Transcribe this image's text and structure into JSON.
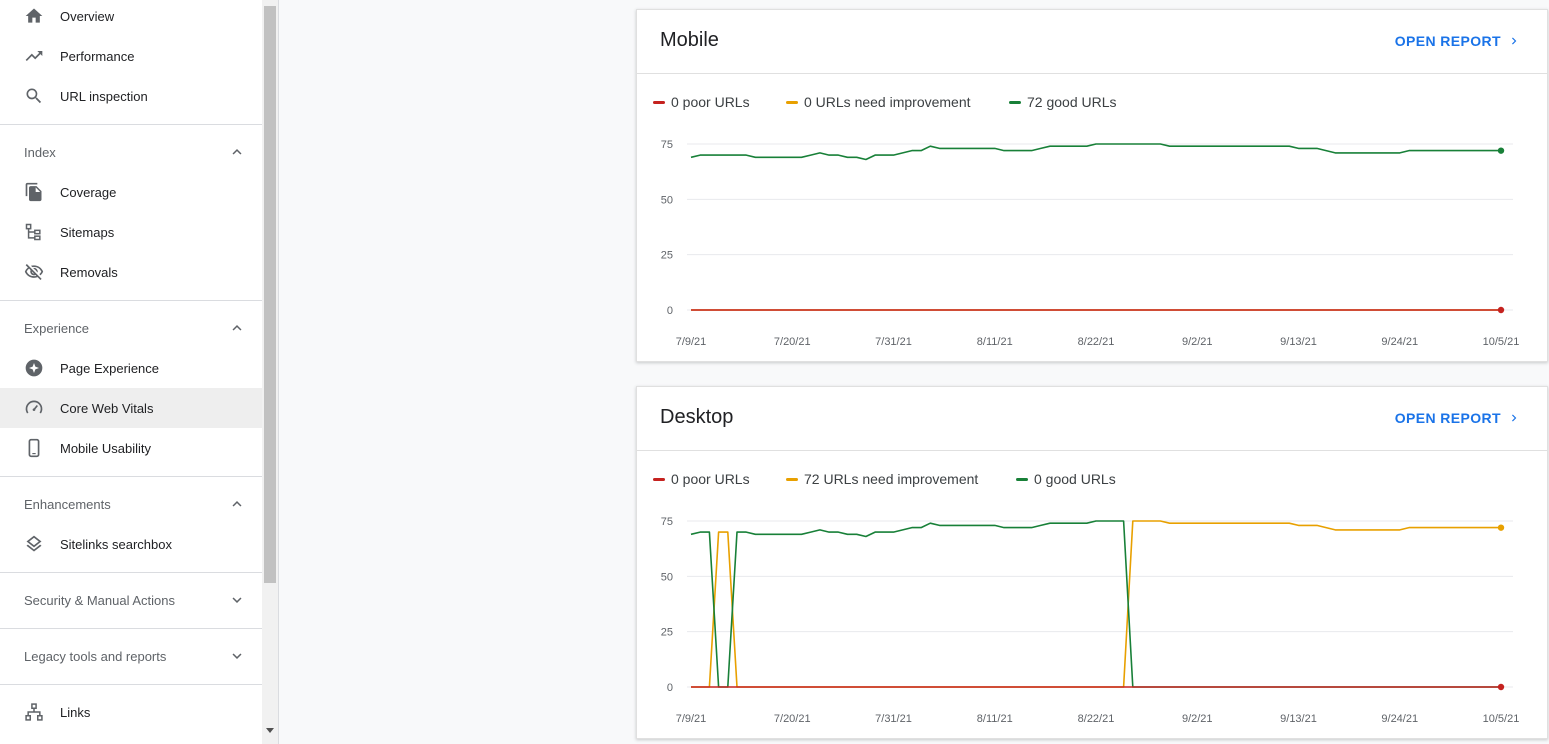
{
  "sidebar": {
    "top_items": [
      {
        "label": "Overview",
        "icon": "home-icon"
      },
      {
        "label": "Performance",
        "icon": "trending-up-icon"
      },
      {
        "label": "URL inspection",
        "icon": "search-icon"
      }
    ],
    "sections": [
      {
        "label": "Index",
        "expanded": true,
        "items": [
          {
            "label": "Coverage",
            "icon": "coverage-icon"
          },
          {
            "label": "Sitemaps",
            "icon": "sitemap-icon"
          },
          {
            "label": "Removals",
            "icon": "eye-off-icon"
          }
        ]
      },
      {
        "label": "Experience",
        "expanded": true,
        "items": [
          {
            "label": "Page Experience",
            "icon": "star-badge-icon"
          },
          {
            "label": "Core Web Vitals",
            "icon": "gauge-icon",
            "active": true
          },
          {
            "label": "Mobile Usability",
            "icon": "phone-icon"
          }
        ]
      },
      {
        "label": "Enhancements",
        "expanded": true,
        "items": [
          {
            "label": "Sitelinks searchbox",
            "icon": "layers-icon"
          }
        ]
      },
      {
        "label": "Security & Manual Actions",
        "expanded": false,
        "items": []
      },
      {
        "label": "Legacy tools and reports",
        "expanded": false,
        "items": []
      }
    ],
    "bottom_items": [
      {
        "label": "Links",
        "icon": "links-icon"
      }
    ]
  },
  "colors": {
    "poor": "#c5221f",
    "improvement": "#e8a000",
    "good": "#188038",
    "link": "#1a73e8"
  },
  "cards": [
    {
      "title": "Mobile",
      "open_report_label": "OPEN REPORT",
      "legend": [
        {
          "label": "0 poor URLs",
          "color": "#c5221f"
        },
        {
          "label": "0 URLs need improvement",
          "color": "#e8a000"
        },
        {
          "label": "72 good URLs",
          "color": "#188038"
        }
      ]
    },
    {
      "title": "Desktop",
      "open_report_label": "OPEN REPORT",
      "legend": [
        {
          "label": "0 poor URLs",
          "color": "#c5221f"
        },
        {
          "label": "72 URLs need improvement",
          "color": "#e8a000"
        },
        {
          "label": "0 good URLs",
          "color": "#188038"
        }
      ]
    }
  ],
  "chart_data": [
    {
      "type": "line",
      "title": "Mobile",
      "x_ticks": [
        "7/9/21",
        "7/20/21",
        "7/31/21",
        "8/11/21",
        "8/22/21",
        "9/2/21",
        "9/13/21",
        "9/24/21",
        "10/5/21"
      ],
      "y_ticks": [
        0,
        25,
        50,
        75
      ],
      "ylim": [
        0,
        80
      ],
      "x_start": "7/9/21",
      "x_end": "10/5/21",
      "days": 89,
      "grid": true,
      "legend_position": "top-left",
      "series": [
        {
          "name": "0 poor URLs",
          "color": "#c5221f",
          "values": [
            0,
            0,
            0,
            0,
            0,
            0,
            0,
            0,
            0,
            0,
            0,
            0,
            0,
            0,
            0,
            0,
            0,
            0,
            0,
            0,
            0,
            0,
            0,
            0,
            0,
            0,
            0,
            0,
            0,
            0,
            0,
            0,
            0,
            0,
            0,
            0,
            0,
            0,
            0,
            0,
            0,
            0,
            0,
            0,
            0,
            0,
            0,
            0,
            0,
            0,
            0,
            0,
            0,
            0,
            0,
            0,
            0,
            0,
            0,
            0,
            0,
            0,
            0,
            0,
            0,
            0,
            0,
            0,
            0,
            0,
            0,
            0,
            0,
            0,
            0,
            0,
            0,
            0,
            0,
            0,
            0,
            0,
            0,
            0,
            0,
            0,
            0,
            0,
            0
          ]
        },
        {
          "name": "0 URLs need improvement",
          "color": "#e8a000",
          "values": [
            0,
            0,
            0,
            0,
            0,
            0,
            0,
            0,
            0,
            0,
            0,
            0,
            0,
            0,
            0,
            0,
            0,
            0,
            0,
            0,
            0,
            0,
            0,
            0,
            0,
            0,
            0,
            0,
            0,
            0,
            0,
            0,
            0,
            0,
            0,
            0,
            0,
            0,
            0,
            0,
            0,
            0,
            0,
            0,
            0,
            0,
            0,
            0,
            0,
            0,
            0,
            0,
            0,
            0,
            0,
            0,
            0,
            0,
            0,
            0,
            0,
            0,
            0,
            0,
            0,
            0,
            0,
            0,
            0,
            0,
            0,
            0,
            0,
            0,
            0,
            0,
            0,
            0,
            0,
            0,
            0,
            0,
            0,
            0,
            0,
            0,
            0,
            0,
            0
          ]
        },
        {
          "name": "72 good URLs",
          "color": "#188038",
          "values": [
            69,
            70,
            70,
            70,
            70,
            70,
            70,
            69,
            69,
            69,
            69,
            69,
            69,
            70,
            71,
            70,
            70,
            69,
            69,
            68,
            70,
            70,
            70,
            71,
            72,
            72,
            74,
            73,
            73,
            73,
            73,
            73,
            73,
            73,
            72,
            72,
            72,
            72,
            73,
            74,
            74,
            74,
            74,
            74,
            75,
            75,
            75,
            75,
            75,
            75,
            75,
            75,
            74,
            74,
            74,
            74,
            74,
            74,
            74,
            74,
            74,
            74,
            74,
            74,
            74,
            74,
            73,
            73,
            73,
            72,
            71,
            71,
            71,
            71,
            71,
            71,
            71,
            71,
            72,
            72,
            72,
            72,
            72,
            72,
            72,
            72,
            72,
            72,
            72
          ]
        }
      ]
    },
    {
      "type": "line",
      "title": "Desktop",
      "x_ticks": [
        "7/9/21",
        "7/20/21",
        "7/31/21",
        "8/11/21",
        "8/22/21",
        "9/2/21",
        "9/13/21",
        "9/24/21",
        "10/5/21"
      ],
      "y_ticks": [
        0,
        25,
        50,
        75
      ],
      "ylim": [
        0,
        80
      ],
      "x_start": "7/9/21",
      "x_end": "10/5/21",
      "days": 89,
      "grid": true,
      "legend_position": "top-left",
      "series": [
        {
          "name": "0 poor URLs",
          "color": "#c5221f",
          "values": [
            0,
            0,
            0,
            0,
            0,
            0,
            0,
            0,
            0,
            0,
            0,
            0,
            0,
            0,
            0,
            0,
            0,
            0,
            0,
            0,
            0,
            0,
            0,
            0,
            0,
            0,
            0,
            0,
            0,
            0,
            0,
            0,
            0,
            0,
            0,
            0,
            0,
            0,
            0,
            0,
            0,
            0,
            0,
            0,
            0,
            0,
            0,
            0,
            0,
            0,
            0,
            0,
            0,
            0,
            0,
            0,
            0,
            0,
            0,
            0,
            0,
            0,
            0,
            0,
            0,
            0,
            0,
            0,
            0,
            0,
            0,
            0,
            0,
            0,
            0,
            0,
            0,
            0,
            0,
            0,
            0,
            0,
            0,
            0,
            0,
            0,
            0,
            0,
            0
          ]
        },
        {
          "name": "72 URLs need improvement",
          "color": "#e8a000",
          "values": [
            0,
            0,
            0,
            70,
            70,
            0,
            0,
            0,
            0,
            0,
            0,
            0,
            0,
            0,
            0,
            0,
            0,
            0,
            0,
            0,
            0,
            0,
            0,
            0,
            0,
            0,
            0,
            0,
            0,
            0,
            0,
            0,
            0,
            0,
            0,
            0,
            0,
            0,
            0,
            0,
            0,
            0,
            0,
            0,
            0,
            0,
            0,
            0,
            75,
            75,
            75,
            75,
            74,
            74,
            74,
            74,
            74,
            74,
            74,
            74,
            74,
            74,
            74,
            74,
            74,
            74,
            73,
            73,
            73,
            72,
            71,
            71,
            71,
            71,
            71,
            71,
            71,
            71,
            72,
            72,
            72,
            72,
            72,
            72,
            72,
            72,
            72,
            72,
            72
          ]
        },
        {
          "name": "0 good URLs",
          "color": "#188038",
          "values": [
            69,
            70,
            70,
            0,
            0,
            70,
            70,
            69,
            69,
            69,
            69,
            69,
            69,
            70,
            71,
            70,
            70,
            69,
            69,
            68,
            70,
            70,
            70,
            71,
            72,
            72,
            74,
            73,
            73,
            73,
            73,
            73,
            73,
            73,
            72,
            72,
            72,
            72,
            73,
            74,
            74,
            74,
            74,
            74,
            75,
            75,
            75,
            75,
            0,
            0,
            0,
            0,
            0,
            0,
            0,
            0,
            0,
            0,
            0,
            0,
            0,
            0,
            0,
            0,
            0,
            0,
            0,
            0,
            0,
            0,
            0,
            0,
            0,
            0,
            0,
            0,
            0,
            0,
            0,
            0,
            0,
            0,
            0,
            0,
            0,
            0,
            0,
            0,
            0
          ]
        }
      ]
    }
  ]
}
